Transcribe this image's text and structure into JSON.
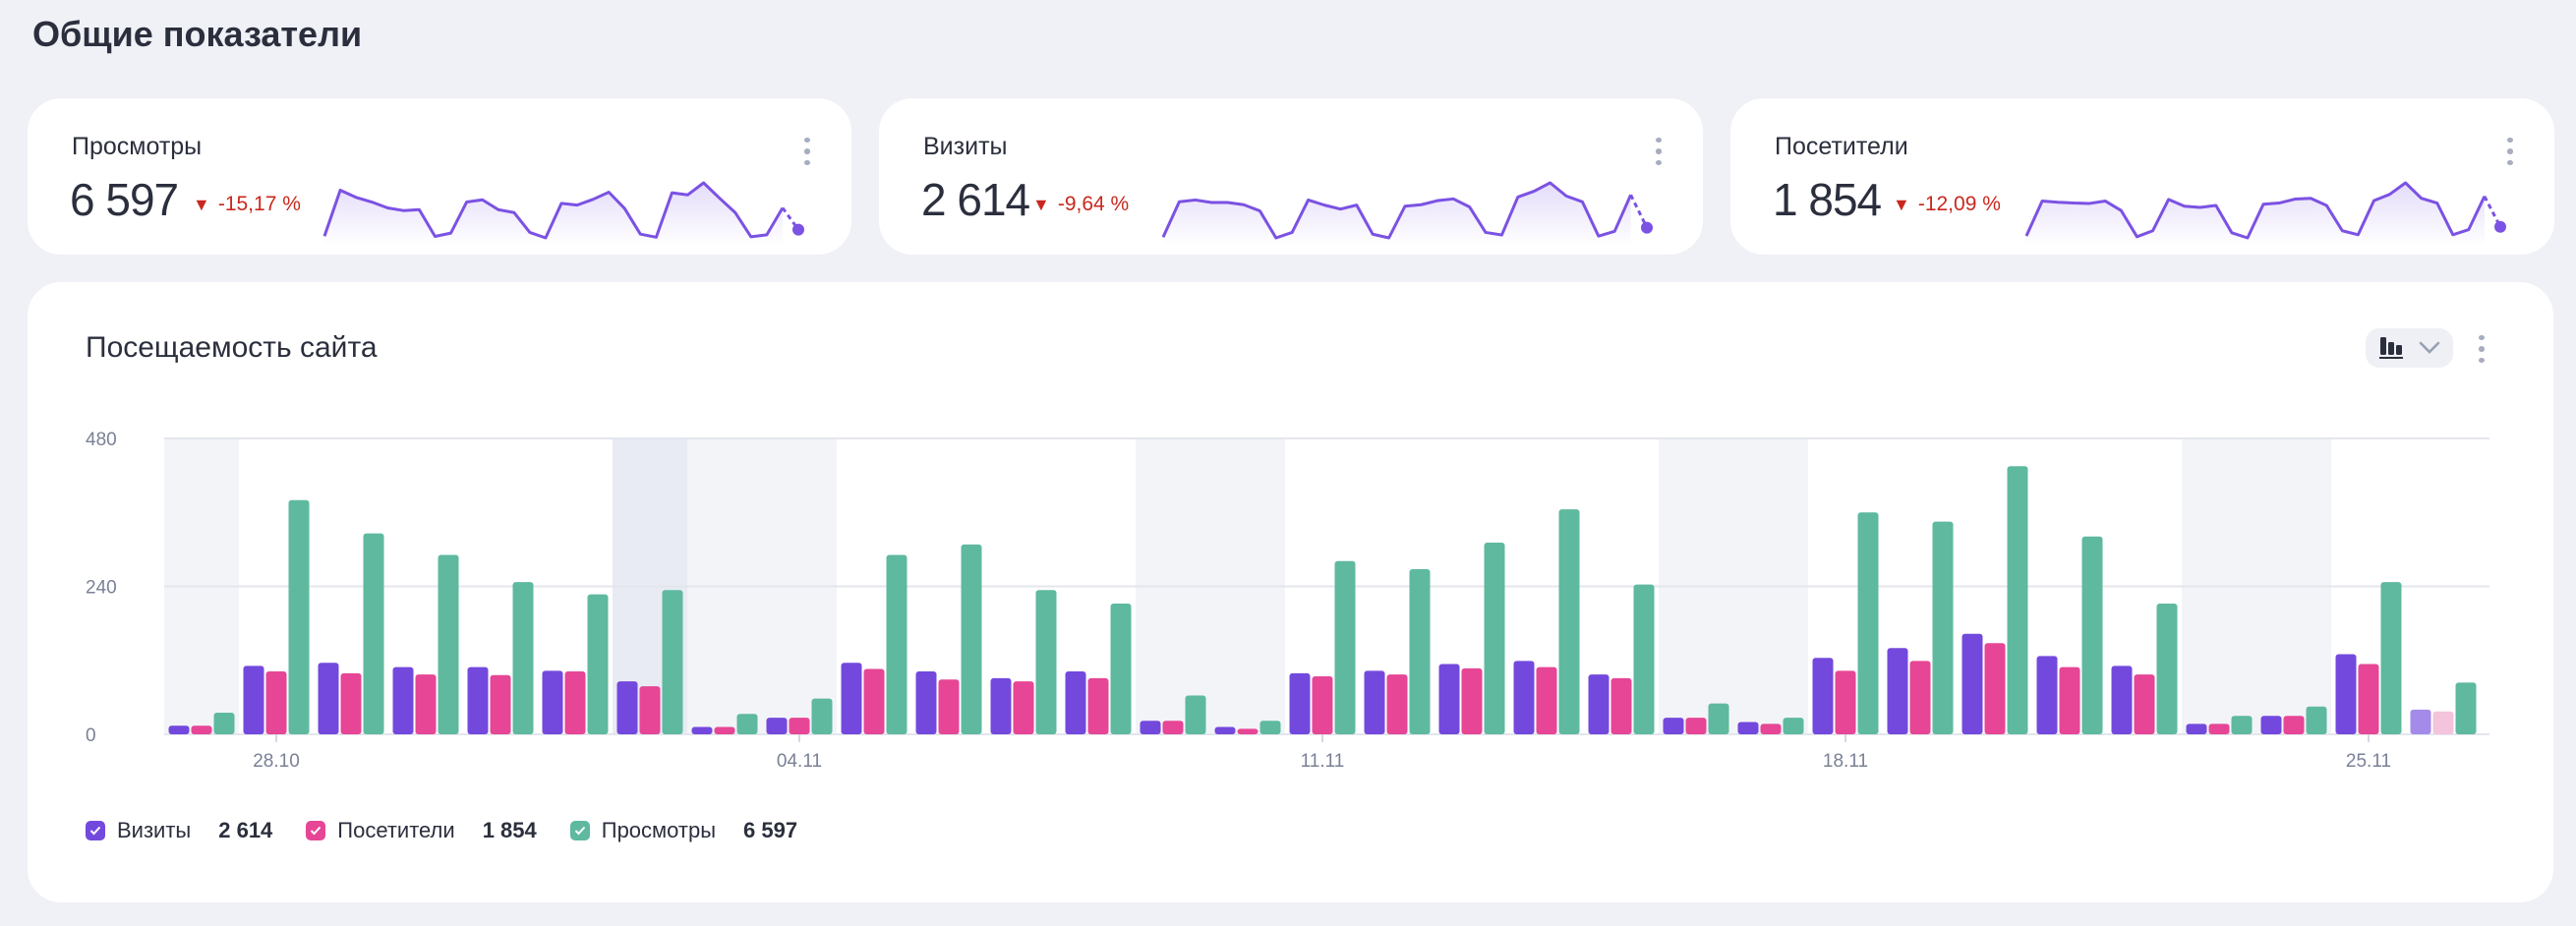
{
  "page_title": "Общие показатели",
  "kpis": [
    {
      "title": "Просмотры",
      "value": "6 597",
      "change": "-15,17 %",
      "trend": "down"
    },
    {
      "title": "Визиты",
      "value": "2 614",
      "change": "-9,64 %",
      "trend": "down"
    },
    {
      "title": "Посетители",
      "value": "1 854",
      "change": "-12,09 %",
      "trend": "down"
    }
  ],
  "icons": {
    "trend_down": "▼",
    "menu": "more-vertical-icon",
    "chart_type": "bar-chart-icon",
    "dropdown": "chevron-down-icon",
    "legend_check": "check-icon"
  },
  "traffic": {
    "title": "Посещаемость сайта",
    "legend": [
      {
        "label": "Визиты",
        "total": "2 614"
      },
      {
        "label": "Посетители",
        "total": "1 854"
      },
      {
        "label": "Просмотры",
        "total": "6 597"
      }
    ]
  },
  "colors": {
    "visits": "#7349dd",
    "visitors": "#e64695",
    "views": "#5eb99f",
    "visits_partial": "#a48be9",
    "visitors_partial": "#f4c3dc",
    "sparkline": "#7b52e3",
    "negative": "#c8281e"
  },
  "chart_data": {
    "type": "bar",
    "categories": [
      "27.10",
      "28.10",
      "29.10",
      "30.10",
      "31.10",
      "01.11",
      "02.11",
      "03.11",
      "04.11",
      "05.11",
      "06.11",
      "07.11",
      "08.11",
      "09.11",
      "10.11",
      "11.11",
      "12.11",
      "13.11",
      "14.11",
      "15.11",
      "16.11",
      "17.11",
      "18.11",
      "19.11",
      "20.11",
      "21.11",
      "22.11",
      "23.11",
      "24.11",
      "25.11",
      "26.11"
    ],
    "x_tick_labels": [
      "28.10",
      "04.11",
      "11.11",
      "18.11",
      "25.11"
    ],
    "y_tick_labels": [
      "0",
      "240",
      "480"
    ],
    "ylim": [
      0,
      480
    ],
    "grid": true,
    "legend_position": "bottom-left",
    "shaded_dates": [
      "27.10",
      "02.11",
      "03.11",
      "04.11",
      "09.11",
      "10.11",
      "16.11",
      "17.11",
      "23.11",
      "24.11"
    ],
    "highlighted_date": "02.11",
    "partial_date": "26.11",
    "series": [
      {
        "name": "Визиты",
        "values": [
          14,
          111,
          116,
          109,
          109,
          103,
          86,
          12,
          27,
          116,
          102,
          91,
          102,
          22,
          12,
          99,
          103,
          114,
          119,
          97,
          27,
          20,
          124,
          140,
          163,
          127,
          111,
          17,
          30,
          130,
          40
        ]
      },
      {
        "name": "Посетители",
        "values": [
          14,
          102,
          99,
          97,
          96,
          102,
          78,
          12,
          27,
          106,
          89,
          86,
          91,
          22,
          9,
          94,
          97,
          107,
          109,
          91,
          27,
          17,
          103,
          119,
          148,
          109,
          97,
          17,
          30,
          114,
          37
        ]
      },
      {
        "name": "Просмотры",
        "values": [
          35,
          380,
          326,
          291,
          247,
          227,
          234,
          33,
          58,
          291,
          308,
          234,
          212,
          63,
          22,
          281,
          268,
          311,
          365,
          243,
          50,
          27,
          360,
          345,
          435,
          321,
          212,
          30,
          45,
          247,
          84
        ]
      }
    ]
  }
}
